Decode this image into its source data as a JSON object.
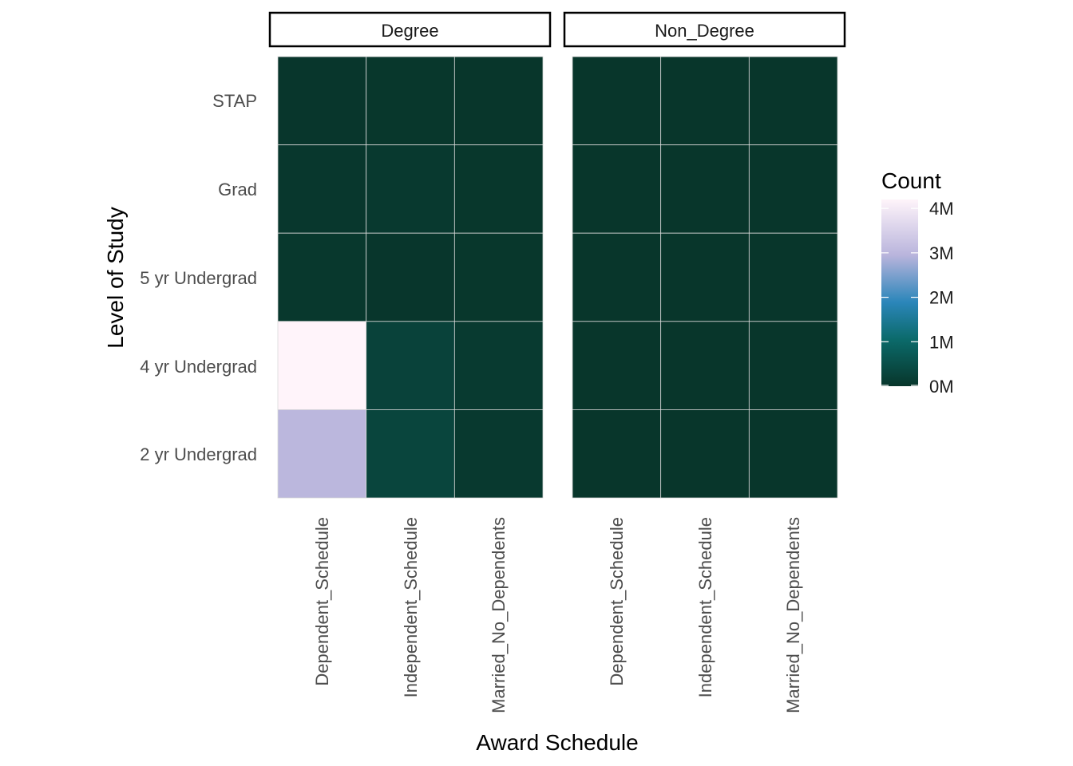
{
  "chart_data": {
    "type": "heatmap",
    "facets": [
      "Degree",
      "Non_Degree"
    ],
    "x_categories": [
      "Dependent_Schedule",
      "Independent_Schedule",
      "Married_No_Dependents"
    ],
    "y_categories": [
      "STAP",
      "Grad",
      "5 yr Undergrad",
      "4 yr Undergrad",
      "2 yr Undergrad"
    ],
    "xlabel": "Award Schedule",
    "ylabel": "Level of Study",
    "legend": {
      "title": "Count",
      "placement": "right",
      "breaks": [
        0,
        1000000,
        2000000,
        3000000,
        4000000
      ],
      "labels": [
        "0M",
        "1M",
        "2M",
        "3M",
        "4M"
      ],
      "limits": [
        0,
        4200000
      ]
    },
    "colors": [
      "#08362b",
      "#0b7f96",
      "#b8b4dc",
      "#fff4fa"
    ],
    "grid": true,
    "values": {
      "Degree": [
        [
          10000,
          20000,
          5000
        ],
        [
          30000,
          60000,
          15000
        ],
        [
          40000,
          10000,
          20000
        ],
        [
          4200000,
          250000,
          80000
        ],
        [
          3000000,
          300000,
          60000
        ]
      ],
      "Non_Degree": [
        [
          1000,
          1000,
          500
        ],
        [
          2000,
          2000,
          1000
        ],
        [
          3000,
          2000,
          1000
        ],
        [
          5000,
          4000,
          2000
        ],
        [
          6000,
          5000,
          2000
        ]
      ]
    }
  }
}
